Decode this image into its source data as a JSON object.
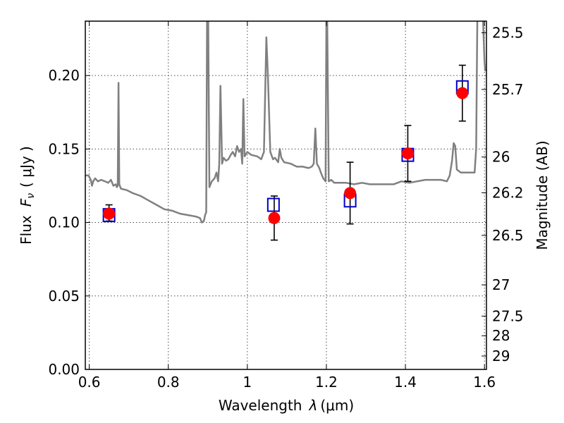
{
  "chart_data": {
    "type": "scatter",
    "xlabel": "Wavelength",
    "xlabel_symbol": "λ",
    "xlabel_unit": "(μm)",
    "ylabel": "Flux",
    "ylabel_symbol": "F",
    "ylabel_subscript": "ν",
    "ylabel_unit": "( μJy )",
    "y2label": "Magnitude (AB)",
    "xlim": [
      0.59,
      1.605
    ],
    "ylim": [
      0.0,
      0.237
    ],
    "grid": true,
    "x_ticks": [
      {
        "value": 0.6,
        "label": "0.6"
      },
      {
        "value": 0.8,
        "label": "0.8"
      },
      {
        "value": 1.0,
        "label": "1"
      },
      {
        "value": 1.2,
        "label": "1.2"
      },
      {
        "value": 1.4,
        "label": "1.4"
      },
      {
        "value": 1.6,
        "label": "1.6"
      }
    ],
    "y_ticks": [
      {
        "value": 0.0,
        "label": "0.00"
      },
      {
        "value": 0.05,
        "label": "0.05"
      },
      {
        "value": 0.1,
        "label": "0.10"
      },
      {
        "value": 0.15,
        "label": "0.15"
      },
      {
        "value": 0.2,
        "label": "0.20"
      }
    ],
    "y2_ticks": [
      {
        "value": 25.5,
        "label": "25.5"
      },
      {
        "value": 25.7,
        "label": "25.7"
      },
      {
        "value": 26.0,
        "label": "26"
      },
      {
        "value": 26.2,
        "label": "26.2"
      },
      {
        "value": 26.5,
        "label": "26.5"
      },
      {
        "value": 27.0,
        "label": "27"
      },
      {
        "value": 27.5,
        "label": "27.5"
      },
      {
        "value": 28.0,
        "label": "28"
      },
      {
        "value": 29.0,
        "label": "29"
      }
    ],
    "series": [
      {
        "kind": "line",
        "color": "#808080",
        "points": [
          [
            0.59,
            0.132
          ],
          [
            0.598,
            0.132
          ],
          [
            0.604,
            0.129
          ],
          [
            0.607,
            0.125
          ],
          [
            0.61,
            0.128
          ],
          [
            0.615,
            0.13
          ],
          [
            0.622,
            0.128
          ],
          [
            0.63,
            0.129
          ],
          [
            0.64,
            0.128
          ],
          [
            0.648,
            0.127
          ],
          [
            0.655,
            0.129
          ],
          [
            0.661,
            0.125
          ],
          [
            0.667,
            0.126
          ],
          [
            0.67,
            0.124
          ],
          [
            0.672,
            0.125
          ],
          [
            0.674,
            0.195
          ],
          [
            0.676,
            0.126
          ],
          [
            0.68,
            0.123
          ],
          [
            0.695,
            0.122
          ],
          [
            0.71,
            0.12
          ],
          [
            0.73,
            0.118
          ],
          [
            0.75,
            0.115
          ],
          [
            0.77,
            0.112
          ],
          [
            0.79,
            0.109
          ],
          [
            0.81,
            0.108
          ],
          [
            0.83,
            0.106
          ],
          [
            0.85,
            0.105
          ],
          [
            0.87,
            0.104
          ],
          [
            0.88,
            0.103
          ],
          [
            0.885,
            0.1
          ],
          [
            0.89,
            0.101
          ],
          [
            0.893,
            0.105
          ],
          [
            0.896,
            0.107
          ],
          [
            0.898,
            0.24
          ],
          [
            0.901,
            0.24
          ],
          [
            0.904,
            0.124
          ],
          [
            0.91,
            0.128
          ],
          [
            0.917,
            0.13
          ],
          [
            0.922,
            0.134
          ],
          [
            0.926,
            0.128
          ],
          [
            0.929,
            0.14
          ],
          [
            0.932,
            0.193
          ],
          [
            0.936,
            0.14
          ],
          [
            0.94,
            0.144
          ],
          [
            0.946,
            0.142
          ],
          [
            0.952,
            0.143
          ],
          [
            0.958,
            0.146
          ],
          [
            0.963,
            0.148
          ],
          [
            0.969,
            0.145
          ],
          [
            0.974,
            0.152
          ],
          [
            0.979,
            0.148
          ],
          [
            0.984,
            0.15
          ],
          [
            0.987,
            0.14
          ],
          [
            0.99,
            0.184
          ],
          [
            0.993,
            0.145
          ],
          [
            1.0,
            0.148
          ],
          [
            1.01,
            0.146
          ],
          [
            1.025,
            0.145
          ],
          [
            1.035,
            0.143
          ],
          [
            1.042,
            0.148
          ],
          [
            1.048,
            0.226
          ],
          [
            1.052,
            0.2
          ],
          [
            1.058,
            0.148
          ],
          [
            1.065,
            0.143
          ],
          [
            1.07,
            0.144
          ],
          [
            1.078,
            0.141
          ],
          [
            1.082,
            0.15
          ],
          [
            1.086,
            0.144
          ],
          [
            1.093,
            0.141
          ],
          [
            1.11,
            0.14
          ],
          [
            1.125,
            0.138
          ],
          [
            1.14,
            0.138
          ],
          [
            1.155,
            0.137
          ],
          [
            1.163,
            0.138
          ],
          [
            1.168,
            0.14
          ],
          [
            1.172,
            0.164
          ],
          [
            1.176,
            0.14
          ],
          [
            1.182,
            0.137
          ],
          [
            1.186,
            0.134
          ],
          [
            1.192,
            0.13
          ],
          [
            1.198,
            0.128
          ],
          [
            1.2,
            0.24
          ],
          [
            1.202,
            0.24
          ],
          [
            1.206,
            0.128
          ],
          [
            1.212,
            0.129
          ],
          [
            1.22,
            0.127
          ],
          [
            1.23,
            0.127
          ],
          [
            1.25,
            0.127
          ],
          [
            1.27,
            0.126
          ],
          [
            1.29,
            0.127
          ],
          [
            1.31,
            0.126
          ],
          [
            1.33,
            0.126
          ],
          [
            1.35,
            0.126
          ],
          [
            1.37,
            0.126
          ],
          [
            1.39,
            0.128
          ],
          [
            1.41,
            0.127
          ],
          [
            1.43,
            0.128
          ],
          [
            1.45,
            0.129
          ],
          [
            1.47,
            0.129
          ],
          [
            1.49,
            0.129
          ],
          [
            1.505,
            0.128
          ],
          [
            1.512,
            0.132
          ],
          [
            1.518,
            0.142
          ],
          [
            1.522,
            0.154
          ],
          [
            1.526,
            0.152
          ],
          [
            1.53,
            0.136
          ],
          [
            1.54,
            0.134
          ],
          [
            1.56,
            0.134
          ],
          [
            1.575,
            0.134
          ],
          [
            1.579,
            0.15
          ],
          [
            1.582,
            0.24
          ],
          [
            1.59,
            0.24
          ],
          [
            1.596,
            0.24
          ],
          [
            1.6,
            0.21
          ],
          [
            1.602,
            0.203
          ]
        ]
      },
      {
        "kind": "square",
        "color": "#0000cc",
        "points": [
          [
            0.65,
            0.105
          ],
          [
            1.066,
            0.112
          ],
          [
            1.26,
            0.115
          ],
          [
            1.406,
            0.146
          ],
          [
            1.544,
            0.192
          ]
        ]
      },
      {
        "kind": "point",
        "color": "#ff0000",
        "points": [
          {
            "x": 0.65,
            "y": 0.106,
            "lo": 0.101,
            "hi": 0.112
          },
          {
            "x": 1.068,
            "y": 0.103,
            "lo": 0.088,
            "hi": 0.118
          },
          {
            "x": 1.26,
            "y": 0.12,
            "lo": 0.099,
            "hi": 0.141
          },
          {
            "x": 1.406,
            "y": 0.147,
            "lo": 0.128,
            "hi": 0.166
          },
          {
            "x": 1.544,
            "y": 0.188,
            "lo": 0.169,
            "hi": 0.207
          }
        ]
      }
    ]
  }
}
